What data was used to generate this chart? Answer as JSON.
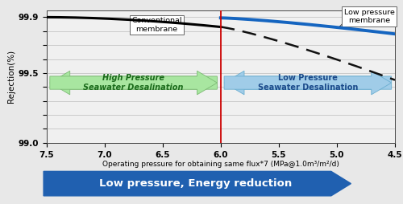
{
  "xlabel": "Operating pressure for obtaining same flux*7 (MPa@1.0m³/m²/d)",
  "ylabel": "Rejection(%)",
  "xlim": [
    7.5,
    4.5
  ],
  "ylim": [
    99.0,
    99.95
  ],
  "yticks": [
    99.0,
    99.1,
    99.2,
    99.3,
    99.4,
    99.5,
    99.6,
    99.7,
    99.8,
    99.9
  ],
  "ytick_labels": [
    "99.0",
    "",
    "",
    "",
    "",
    "99.5",
    "",
    "",
    "",
    "99.9"
  ],
  "xticks": [
    7.5,
    7.0,
    6.5,
    6.0,
    5.5,
    5.0,
    4.5
  ],
  "xtick_labels": [
    "7.5",
    "7.0",
    "6.5",
    "6.0",
    "5.5",
    "5.0",
    "4.5"
  ],
  "vline_x": 6.0,
  "vline_color": "#cc0000",
  "conventional_color": "#000000",
  "low_pressure_color": "#1565c0",
  "dashed_color": "#111111",
  "bg_color": "#e8e8e8",
  "plot_bg_color": "#f0f0f0",
  "arrow_high_color": "#a8e6a0",
  "arrow_high_edge": "#7cba74",
  "arrow_low_color": "#a0cce8",
  "arrow_low_edge": "#6aaed0",
  "bottom_arrow_color": "#2060b0",
  "bottom_arrow_text": "Low pressure, Energy reduction",
  "conv_label": "Conventional\nmembrane",
  "lp_label": "Low pressure\nmembrane",
  "high_label": "High Pressure\nSeawater Desalination",
  "low_label": "Low Pressure\nSeawater Desalination"
}
